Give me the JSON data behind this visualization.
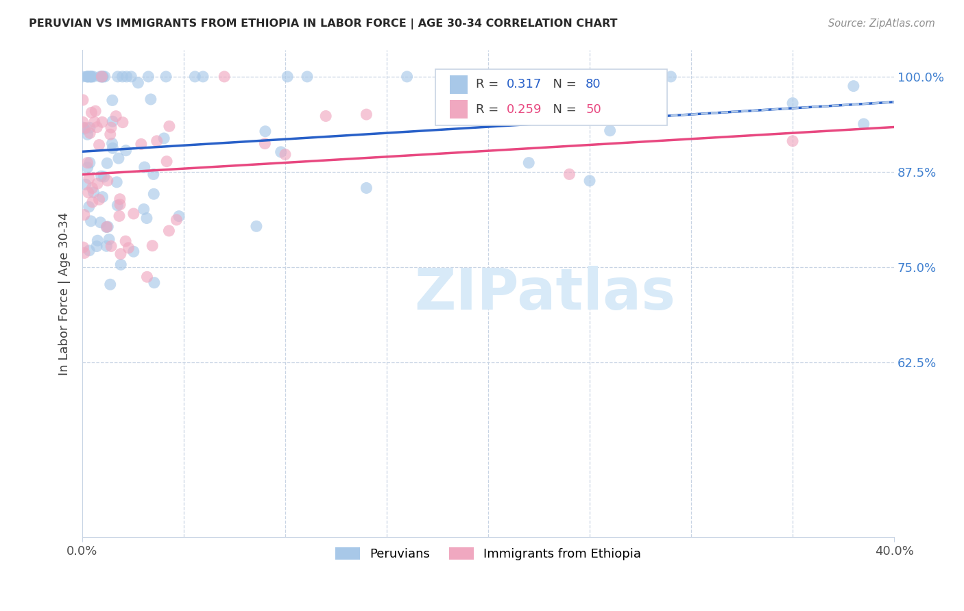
{
  "title": "PERUVIAN VS IMMIGRANTS FROM ETHIOPIA IN LABOR FORCE | AGE 30-34 CORRELATION CHART",
  "source": "Source: ZipAtlas.com",
  "ylabel": "In Labor Force | Age 30-34",
  "xlim": [
    0.0,
    0.4
  ],
  "ylim": [
    0.395,
    1.035
  ],
  "ytick_vals": [
    0.625,
    0.75,
    0.875,
    1.0
  ],
  "ytick_labels": [
    "62.5%",
    "75.0%",
    "87.5%",
    "100.0%"
  ],
  "blue_fill": "#a8c8e8",
  "pink_fill": "#f0a8c0",
  "blue_line": "#2860c8",
  "pink_line": "#e84880",
  "blue_dash": "#b0c8e8",
  "R_blue": "0.317",
  "N_blue": "80",
  "R_pink": "0.259",
  "N_pink": "50",
  "R_N_blue_color": "#2860c8",
  "R_N_pink_color": "#e84880",
  "grid_color": "#c8d4e4",
  "tick_color": "#4080d0",
  "bg": "#ffffff",
  "watermark_color": "#d8eaf8",
  "legend_label_blue": "Peruvians",
  "legend_label_pink": "Immigrants from Ethiopia"
}
